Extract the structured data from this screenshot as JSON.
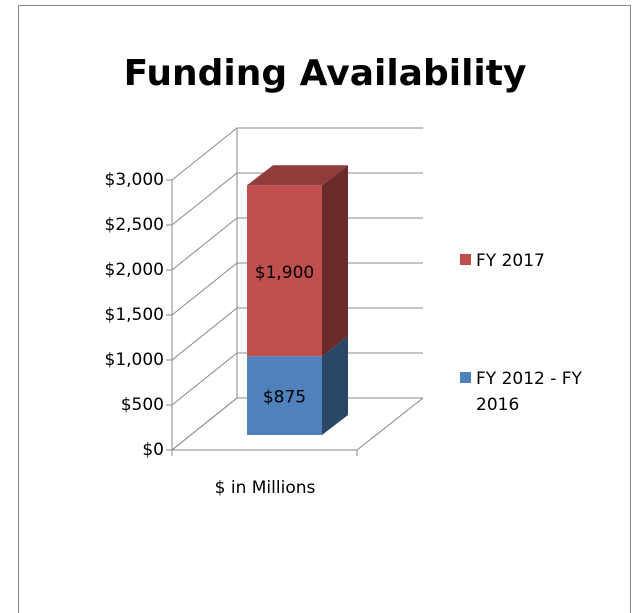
{
  "chart_data": {
    "type": "bar3d_stacked",
    "title": "Funding Availability",
    "categories": [
      "$ in Millions"
    ],
    "series": [
      {
        "name": "FY 2012 - FY 2016",
        "color": "#4f81bd",
        "values": [
          875
        ],
        "value_labels": [
          "$875"
        ]
      },
      {
        "name": "FY 2017",
        "color": "#c0504d",
        "values": [
          1900
        ],
        "value_labels": [
          "$1,900"
        ]
      }
    ],
    "ylim": [
      0,
      3000
    ],
    "yticks": [
      {
        "value": 0,
        "label": "$0"
      },
      {
        "value": 500,
        "label": "$500"
      },
      {
        "value": 1000,
        "label": "$1,000"
      },
      {
        "value": 1500,
        "label": "$1,500"
      },
      {
        "value": 2000,
        "label": "$2,000"
      },
      {
        "value": 2500,
        "label": "$2,500"
      },
      {
        "value": 3000,
        "label": "$3,000"
      }
    ],
    "grid": true,
    "legend": "right"
  }
}
